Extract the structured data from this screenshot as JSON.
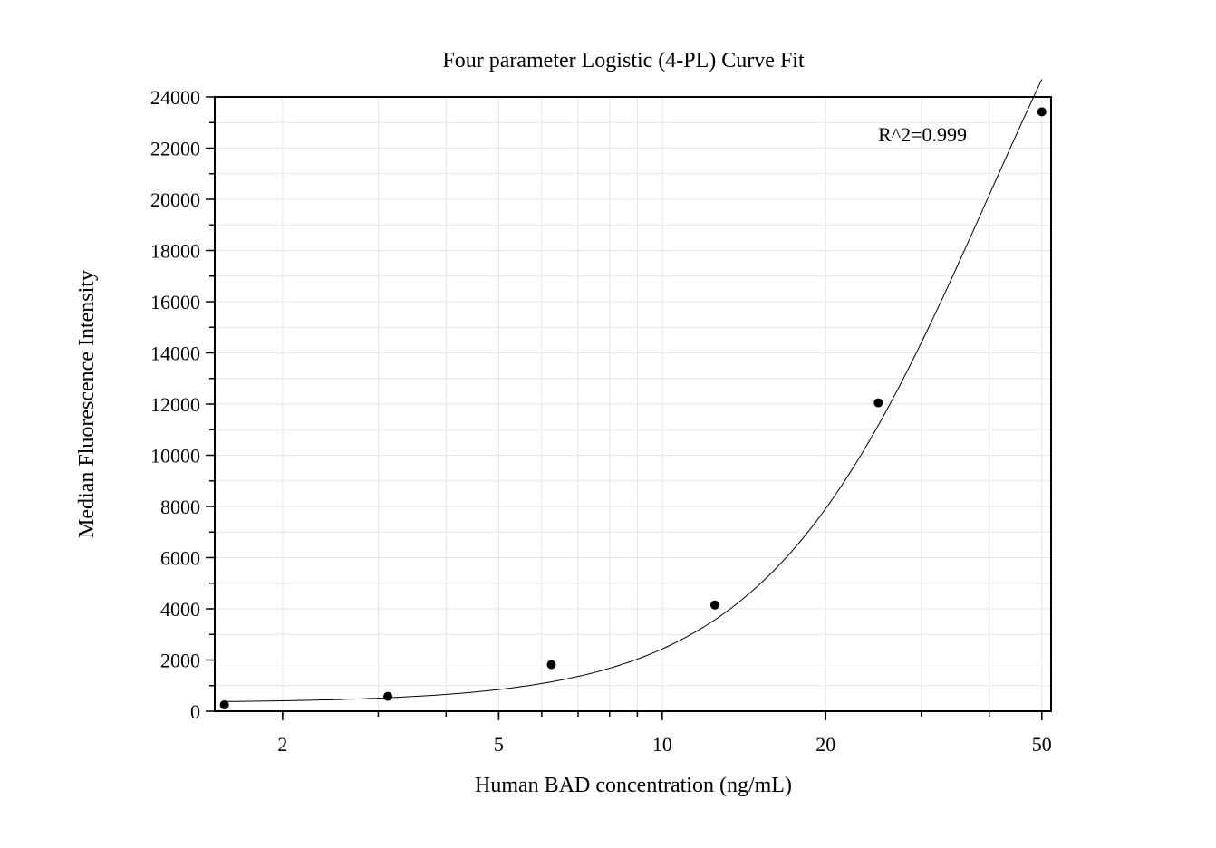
{
  "chart_data": {
    "type": "scatter",
    "title": "Four parameter Logistic (4-PL) Curve Fit",
    "xlabel": "Human BAD concentration (ng/mL)",
    "ylabel": "Median Fluorescence Intensity",
    "xscale": "log",
    "xlim": [
      1.5,
      52
    ],
    "ylim": [
      0,
      24000
    ],
    "x_ticks": [
      2,
      5,
      10,
      20,
      50
    ],
    "x_tick_labels": [
      "2",
      "5",
      "10",
      "20",
      "50"
    ],
    "y_ticks": [
      0,
      2000,
      4000,
      6000,
      8000,
      10000,
      12000,
      14000,
      16000,
      18000,
      20000,
      22000,
      24000
    ],
    "y_tick_labels": [
      "0",
      "2000",
      "4000",
      "6000",
      "8000",
      "10000",
      "12000",
      "14000",
      "16000",
      "18000",
      "20000",
      "22000",
      "24000"
    ],
    "grid": true,
    "series": [
      {
        "x": [
          1.5625,
          3.125,
          6.25,
          12.5,
          25,
          50
        ],
        "y": [
          250,
          580,
          1820,
          4150,
          12050,
          23420
        ]
      }
    ],
    "fit": {
      "model": "4PL",
      "A": 330,
      "B": 2.08,
      "C": 40,
      "D": 40000,
      "x_range": [
        1.5625,
        50
      ]
    },
    "annotations": [
      {
        "text": "R^2=0.999",
        "position": "top-right"
      }
    ]
  }
}
